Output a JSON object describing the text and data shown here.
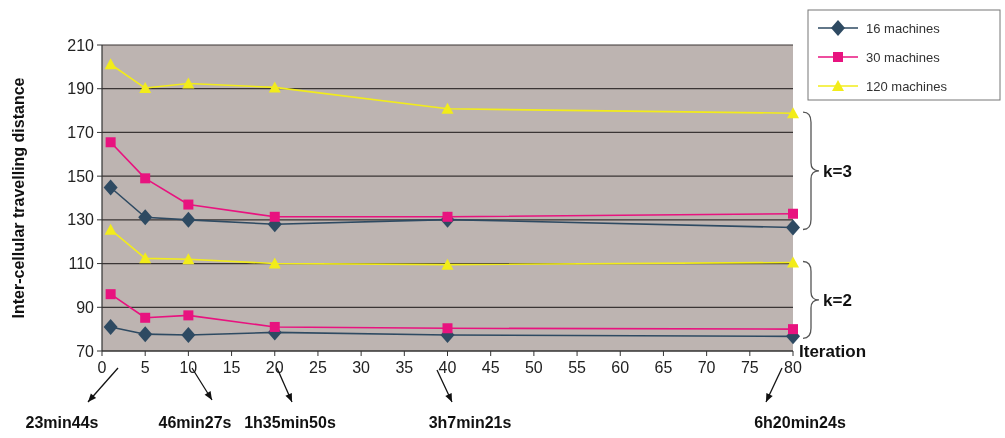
{
  "chart_data": {
    "type": "line",
    "ylabel": "Inter-cellular travelling distance",
    "xlabel": "Iteration",
    "xlim": [
      0,
      80
    ],
    "xticks": [
      0,
      5,
      10,
      15,
      20,
      25,
      30,
      35,
      40,
      45,
      50,
      55,
      60,
      65,
      70,
      75,
      80
    ],
    "ylim": [
      70,
      210
    ],
    "yticks": [
      70,
      90,
      110,
      130,
      150,
      170,
      190,
      210
    ],
    "grid": "y",
    "legend": "top right",
    "series": [
      {
        "name": "16 machines",
        "color": "#2e4a62",
        "marker": "diamond",
        "x": [
          1,
          5,
          10,
          20,
          40,
          80
        ],
        "values": [
          144.8,
          131.2,
          130,
          128,
          130.1,
          126.5
        ]
      },
      {
        "name": "30 machines",
        "color": "#e8137f",
        "marker": "square",
        "x": [
          1,
          5,
          10,
          20,
          40,
          80
        ],
        "values": [
          165.5,
          149,
          137,
          131.4,
          131.4,
          132.8
        ]
      },
      {
        "name": "120 machines",
        "color": "#f2ec1a",
        "marker": "triangle",
        "x": [
          1,
          5,
          10,
          20,
          40,
          80
        ],
        "values": [
          201.2,
          190.3,
          192.4,
          190.6,
          180.8,
          178.8
        ]
      },
      {
        "color": "#2e4a62",
        "marker": "diamond",
        "x": [
          1,
          5,
          10,
          20,
          40,
          80
        ],
        "values": [
          81,
          77.7,
          77.3,
          78.5,
          77.3,
          76.7
        ]
      },
      {
        "color": "#e8137f",
        "marker": "square",
        "x": [
          1,
          5,
          10,
          20,
          40,
          80
        ],
        "values": [
          96,
          85.2,
          86.3,
          81,
          80.4,
          80
        ]
      },
      {
        "color": "#f2ec1a",
        "marker": "triangle",
        "x": [
          1,
          5,
          10,
          20,
          40,
          80
        ],
        "values": [
          125.5,
          112.4,
          112,
          110,
          109.5,
          110.5
        ]
      }
    ],
    "annotations": [
      "k=3",
      "k=2",
      "23min44s",
      "46min27s",
      "1h35min50s",
      "3h7min21s",
      "6h20min24s"
    ]
  }
}
